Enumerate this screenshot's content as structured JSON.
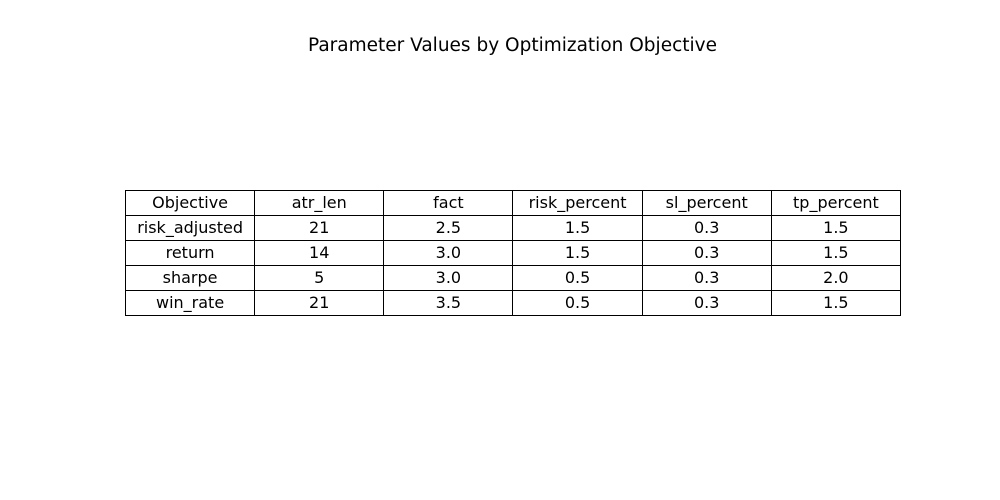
{
  "chart_data": {
    "type": "table",
    "title": "Parameter Values by Optimization Objective",
    "columns": [
      "Objective",
      "atr_len",
      "fact",
      "risk_percent",
      "sl_percent",
      "tp_percent"
    ],
    "rows": [
      [
        "risk_adjusted",
        "21",
        "2.5",
        "1.5",
        "0.3",
        "1.5"
      ],
      [
        "return",
        "14",
        "3.0",
        "1.5",
        "0.3",
        "1.5"
      ],
      [
        "sharpe",
        "5",
        "3.0",
        "0.5",
        "0.3",
        "2.0"
      ],
      [
        "win_rate",
        "21",
        "3.5",
        "0.5",
        "0.3",
        "1.5"
      ]
    ]
  }
}
